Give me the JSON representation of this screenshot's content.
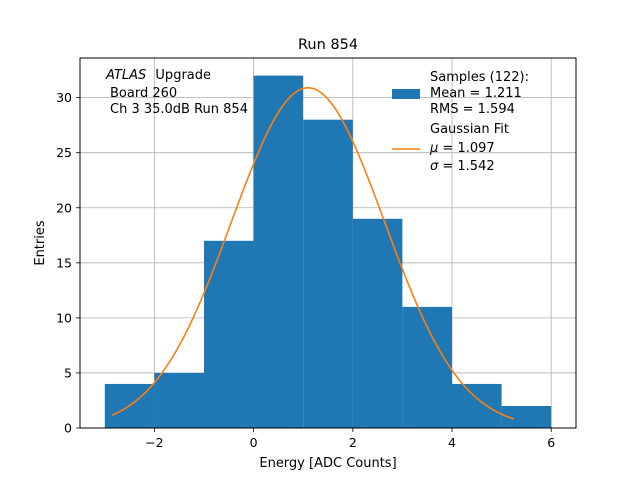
{
  "chart_data": {
    "type": "bar",
    "title": "Run 854",
    "xlabel": "Energy [ADC Counts]",
    "ylabel": "Entries",
    "xlim": [
      -3.5,
      6.5
    ],
    "ylim": [
      0,
      33.6
    ],
    "grid": true,
    "xticks": [
      -2,
      0,
      2,
      4,
      6
    ],
    "xtick_labels": [
      "−2",
      "0",
      "2",
      "4",
      "6"
    ],
    "yticks": [
      0,
      5,
      10,
      15,
      20,
      25,
      30
    ],
    "bins": [
      {
        "x0": -3,
        "x1": -2,
        "count": 4
      },
      {
        "x0": -2,
        "x1": -1,
        "count": 5
      },
      {
        "x0": -1,
        "x1": 0,
        "count": 17
      },
      {
        "x0": 0,
        "x1": 1,
        "count": 32
      },
      {
        "x0": 1,
        "x1": 2,
        "count": 28
      },
      {
        "x0": 2,
        "x1": 3,
        "count": 19
      },
      {
        "x0": 3,
        "x1": 4,
        "count": 11
      },
      {
        "x0": 4,
        "x1": 5,
        "count": 4
      },
      {
        "x0": 5,
        "x1": 6,
        "count": 2
      }
    ],
    "fit": {
      "name": "Gaussian Fit",
      "mu": 1.097,
      "sigma": 1.542,
      "amplitude": 30.9,
      "x_range": [
        -2.85,
        5.25
      ]
    },
    "annotation": {
      "experiment": "ATLAS",
      "experiment_suffix": "Upgrade",
      "line2": "Board 260",
      "line3": "Ch 3 35.0dB  Run 854"
    },
    "legend": {
      "placement": "top-right",
      "samples_title": "Samples (122):",
      "samples_mean": "Mean = 1.211",
      "samples_rms": "RMS = 1.594",
      "fit_title": "Gaussian Fit",
      "fit_mu_symbol": "μ",
      "fit_mu_value": " = 1.097",
      "fit_sigma_symbol": "σ",
      "fit_sigma_value": " = 1.542"
    },
    "colors": {
      "bars": "#1f77b4",
      "fit": "#ff7f0e",
      "grid": "#b0b0b0"
    }
  }
}
